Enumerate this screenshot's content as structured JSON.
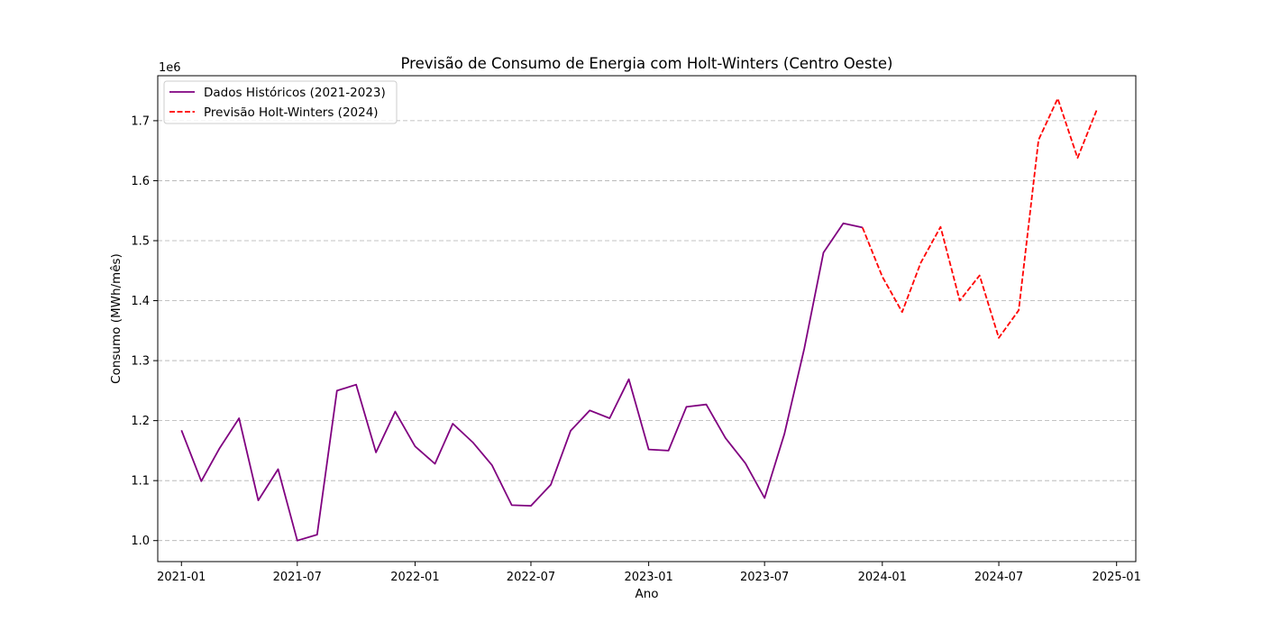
{
  "chart_data": {
    "type": "line",
    "title": "Previsão de Consumo de Energia com Holt-Winters (Centro Oeste)",
    "xlabel": "Ano",
    "ylabel": "Consumo (MWh/mês)",
    "y_offset_label": "1e6",
    "ylim": [
      0.965,
      1.775
    ],
    "xlim": [
      "2020-11-25",
      "2025-01-31"
    ],
    "y_ticks": [
      1.0,
      1.1,
      1.2,
      1.3,
      1.4,
      1.5,
      1.6,
      1.7
    ],
    "y_tick_labels": [
      "1.0",
      "1.1",
      "1.2",
      "1.3",
      "1.4",
      "1.5",
      "1.6",
      "1.7"
    ],
    "x_ticks": [
      "2021-01-01",
      "2021-07-01",
      "2022-01-01",
      "2022-07-01",
      "2023-01-01",
      "2023-07-01",
      "2024-01-01",
      "2024-07-01",
      "2025-01-01"
    ],
    "x_tick_labels": [
      "2021-01",
      "2021-07",
      "2022-01",
      "2022-07",
      "2023-01",
      "2023-07",
      "2024-01",
      "2024-07",
      "2025-01"
    ],
    "grid": "y-dashed",
    "legend_position": "top-left",
    "series": [
      {
        "name": "Dados Históricos (2021-2023)",
        "color": "#800080",
        "style": "solid",
        "x": [
          "2021-01-01",
          "2021-02-01",
          "2021-03-01",
          "2021-04-01",
          "2021-05-01",
          "2021-06-01",
          "2021-07-01",
          "2021-08-01",
          "2021-09-01",
          "2021-10-01",
          "2021-11-01",
          "2021-12-01",
          "2022-01-01",
          "2022-02-01",
          "2022-03-01",
          "2022-04-01",
          "2022-05-01",
          "2022-06-01",
          "2022-07-01",
          "2022-08-01",
          "2022-09-01",
          "2022-10-01",
          "2022-11-01",
          "2022-12-01",
          "2023-01-01",
          "2023-02-01",
          "2023-03-01",
          "2023-04-01",
          "2023-05-01",
          "2023-06-01",
          "2023-07-01",
          "2023-08-01",
          "2023-09-01",
          "2023-10-01",
          "2023-11-01",
          "2023-12-01"
        ],
        "values": [
          1.184,
          1.099,
          1.153,
          1.204,
          1.067,
          1.119,
          1.0,
          1.01,
          1.25,
          1.26,
          1.147,
          1.215,
          1.157,
          1.128,
          1.195,
          1.164,
          1.126,
          1.059,
          1.058,
          1.093,
          1.183,
          1.217,
          1.204,
          1.269,
          1.152,
          1.15,
          1.223,
          1.227,
          1.171,
          1.129,
          1.071,
          1.178,
          1.32,
          1.48,
          1.529,
          1.522
        ]
      },
      {
        "name": "Previsão Holt-Winters (2024)",
        "color": "#ff0000",
        "style": "dashed",
        "x": [
          "2023-12-01",
          "2024-01-01",
          "2024-02-01",
          "2024-03-01",
          "2024-04-01",
          "2024-05-01",
          "2024-06-01",
          "2024-07-01",
          "2024-08-01",
          "2024-09-01",
          "2024-10-01",
          "2024-11-01",
          "2024-12-01"
        ],
        "values": [
          1.522,
          1.44,
          1.381,
          1.463,
          1.523,
          1.4,
          1.442,
          1.338,
          1.384,
          1.668,
          1.737,
          1.638,
          1.718
        ]
      }
    ]
  }
}
